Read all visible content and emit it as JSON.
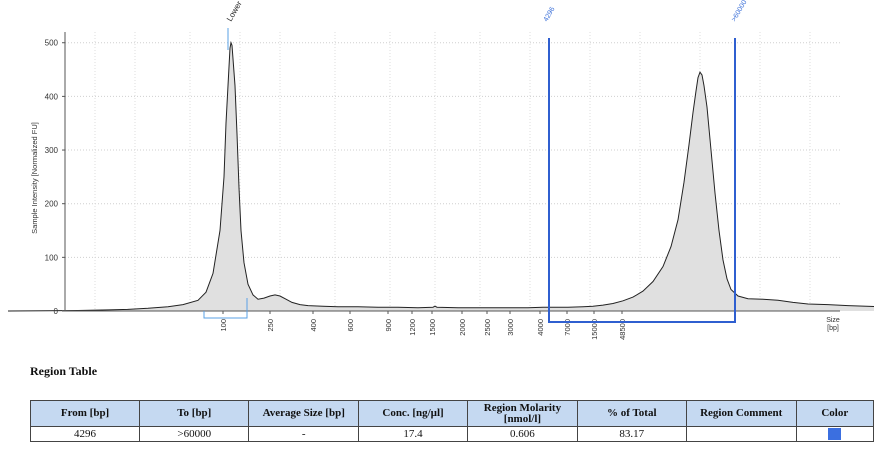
{
  "chart_data": {
    "type": "area",
    "ylabel": "Sample Intensity [Normalized FU]",
    "xlabel": "Size\n[bp]",
    "x_tick_labels": [
      "100",
      "250",
      "400",
      "600",
      "900",
      "1200",
      "1500",
      "2000",
      "2500",
      "3000",
      "4000",
      "7000",
      "15000",
      "48500"
    ],
    "y_ticks": [
      0,
      100,
      200,
      300,
      400,
      500
    ],
    "ylim": [
      0,
      520
    ],
    "grid": true,
    "peaks": [
      {
        "label": "Lower",
        "size_bp": 100,
        "intensity": 500
      },
      {
        "size_bp": 180,
        "intensity": 30
      },
      {
        "size_bp": 35000,
        "intensity": 445
      }
    ],
    "region_markers": [
      "4296",
      ">60000"
    ],
    "series": [
      {
        "points": [
          [
            -220,
            0
          ],
          [
            -180,
            0.5
          ],
          [
            -150,
            1
          ],
          [
            -120,
            2
          ],
          [
            -100,
            3
          ],
          [
            -80,
            5
          ],
          [
            -60,
            8
          ],
          [
            -45,
            12
          ],
          [
            -30,
            20
          ],
          [
            -22,
            35
          ],
          [
            -15,
            70
          ],
          [
            -8,
            150
          ],
          [
            -4,
            250
          ],
          [
            -2,
            350
          ],
          [
            0,
            420
          ],
          [
            2,
            490
          ],
          [
            3,
            500
          ],
          [
            4,
            495
          ],
          [
            5,
            470
          ],
          [
            7,
            420
          ],
          [
            9,
            330
          ],
          [
            11,
            230
          ],
          [
            13,
            150
          ],
          [
            16,
            90
          ],
          [
            20,
            50
          ],
          [
            25,
            30
          ],
          [
            30,
            22
          ],
          [
            36,
            24
          ],
          [
            42,
            28
          ],
          [
            47,
            30
          ],
          [
            52,
            28
          ],
          [
            58,
            22
          ],
          [
            64,
            16
          ],
          [
            72,
            12
          ],
          [
            80,
            10
          ],
          [
            95,
            9
          ],
          [
            110,
            8
          ],
          [
            130,
            8
          ],
          [
            150,
            7
          ],
          [
            170,
            7
          ],
          [
            190,
            6
          ],
          [
            205,
            7
          ],
          [
            207,
            9
          ],
          [
            209,
            7
          ],
          [
            230,
            6
          ],
          [
            250,
            6
          ],
          [
            270,
            6
          ],
          [
            300,
            6
          ],
          [
            315,
            7
          ],
          [
            340,
            7
          ],
          [
            355,
            8
          ],
          [
            365,
            9
          ],
          [
            375,
            11
          ],
          [
            385,
            14
          ],
          [
            395,
            19
          ],
          [
            405,
            26
          ],
          [
            415,
            37
          ],
          [
            425,
            55
          ],
          [
            435,
            83
          ],
          [
            443,
            120
          ],
          [
            450,
            170
          ],
          [
            456,
            240
          ],
          [
            461,
            310
          ],
          [
            465,
            370
          ],
          [
            468,
            410
          ],
          [
            470,
            435
          ],
          [
            472,
            445
          ],
          [
            474,
            440
          ],
          [
            476,
            420
          ],
          [
            479,
            380
          ],
          [
            483,
            300
          ],
          [
            487,
            220
          ],
          [
            491,
            150
          ],
          [
            495,
            95
          ],
          [
            499,
            60
          ],
          [
            503,
            40
          ],
          [
            510,
            28
          ],
          [
            520,
            23
          ],
          [
            535,
            22
          ],
          [
            550,
            20
          ],
          [
            565,
            16
          ],
          [
            580,
            13
          ],
          [
            600,
            12
          ],
          [
            620,
            10
          ],
          [
            650,
            8
          ],
          [
            680,
            7
          ]
        ]
      }
    ]
  },
  "region_table": {
    "title": "Region Table",
    "columns": [
      "From [bp]",
      "To [bp]",
      "Average Size [bp]",
      "Conc. [ng/µl]",
      "Region Molarity [nmol/l]",
      "% of Total",
      "Region Comment",
      "Color"
    ],
    "rows": [
      {
        "from": "4296",
        "to": ">60000",
        "avg_size": "-",
        "conc": "17.4",
        "molarity": "0.606",
        "pct_total": "83.17",
        "comment": "",
        "color": "#3b6fe0"
      }
    ]
  },
  "colors": {
    "region_marker": "#2f5fd0",
    "lower_marker": "#5aa0e6",
    "fill": "#e0e0e0",
    "line": "#222222",
    "header_bg": "#c5d9f1"
  }
}
